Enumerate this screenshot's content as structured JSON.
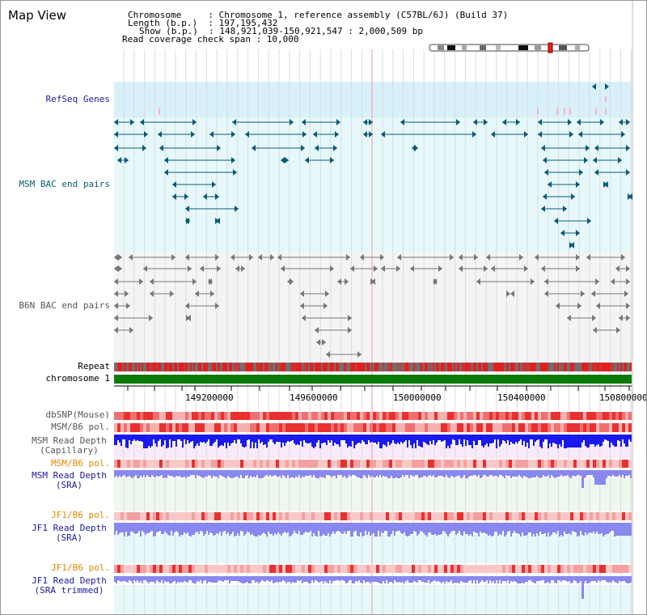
{
  "title": "Map View",
  "info": {
    "line1": "Chromosome     : Chromosome 1, reference assembly (C57BL/6J) (Build 37)",
    "line2": "Length (b.p.)  : 197,195,432",
    "line3": "Show (b.p.)  : 148,921,039-150,921,547 : 2,000,509 bp",
    "line4": "Read coverage check span : 10,000"
  },
  "tracks": {
    "refseq": "RefSeq Genes",
    "msm_bac": "MSM BAC end pairs",
    "b6n_bac": "B6N BAC end pairs",
    "repeat": "Repeat",
    "chromosome": "chromosome 1",
    "dbsnp": "dbSNP(Mouse)",
    "msm_b6_pol": "MSM/B6 pol.",
    "msm_depth_cap_1": "MSM Read Depth",
    "msm_depth_cap_2": "(Capillary)",
    "msm_b6_pol_2": "MSM/B6 pol.",
    "msm_depth_sra_1": "MSM Read Depth",
    "msm_depth_sra_2": "(SRA)",
    "jf1_b6_pol": "JF1/B6 pol.",
    "jf1_depth_sra_1": "JF1 Read Depth",
    "jf1_depth_sra_2": "(SRA)",
    "jf1_b6_pol_2": "JF1/B6 pol.",
    "jf1_depth_trim_1": "JF1 Read Depth",
    "jf1_depth_trim_2": "(SRA trimmed)"
  },
  "axis": {
    "ticks": [
      "149200000",
      "149600000",
      "150000000",
      "150400000",
      "150800000"
    ]
  },
  "colors": {
    "refseq_bg": "#d8f0fa",
    "msm_bg": "#e6f8fa",
    "b6n_bg": "#f4f4f6",
    "chromosome": "#0a7a0a",
    "refseq_feature": "#0a5a78",
    "b6n_feature": "#777777",
    "depth_capillary": "#1a1aee",
    "depth_sra": "#8888ee",
    "pol": "#e83030",
    "highlight": "#ff9ab0"
  }
}
